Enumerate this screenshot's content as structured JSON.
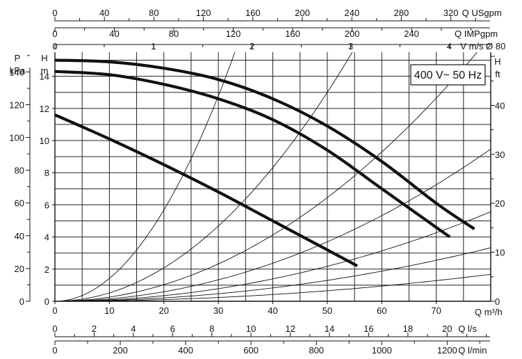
{
  "chart_data": {
    "type": "line",
    "badge": "400 V~ 50 Hz",
    "x_unit": "Q m³/h",
    "xlim": [
      0,
      80
    ],
    "ylim": [
      0,
      15.5
    ],
    "grid": true,
    "y_left_label": "H",
    "y_left_unit": "m",
    "y_left_ticks": [
      0,
      2,
      4,
      6,
      8,
      10,
      12,
      14
    ],
    "y_kpa_label": "P",
    "y_kpa_unit": "kPa",
    "y_kpa_ticks": [
      0,
      20,
      40,
      60,
      80,
      100,
      120,
      140
    ],
    "y_right_label": "H",
    "y_right_unit": "ft",
    "y_right_ticks": [
      0,
      10,
      20,
      30,
      40
    ],
    "x_bottom_ticks": [
      0,
      10,
      20,
      30,
      40,
      50,
      60,
      70
    ],
    "extra_axes": [
      {
        "id": "usgpm",
        "label": "Q USgpm",
        "ticks": [
          0,
          40,
          80,
          120,
          160,
          200,
          240,
          280,
          320
        ],
        "m3h_per_unit": 0.22712
      },
      {
        "id": "impgpm",
        "label": "Q IMPgpm",
        "ticks": [
          0,
          40,
          80,
          120,
          160,
          200,
          240
        ],
        "m3h_per_unit": 0.27277
      },
      {
        "id": "velocity",
        "label": "V m/s Ø 80",
        "ticks": [
          0,
          1,
          2,
          3,
          4
        ],
        "m3h_per_unit": 18.096
      },
      {
        "id": "ls",
        "label": "Q l/s",
        "ticks": [
          0,
          2,
          4,
          6,
          8,
          10,
          12,
          14,
          16,
          18,
          20
        ],
        "m3h_per_unit": 3.6
      },
      {
        "id": "lmin",
        "label": "Q l/min",
        "ticks": [
          0,
          200,
          400,
          600,
          800,
          1000,
          1200
        ],
        "m3h_per_unit": 0.06
      }
    ],
    "series": [
      {
        "x": [
          0,
          10,
          20,
          30,
          40,
          50,
          55.5
        ],
        "y": [
          11.6,
          10.1,
          8.5,
          6.8,
          5.0,
          3.2,
          2.2
        ]
      },
      {
        "x": [
          0,
          10,
          20,
          30,
          40,
          50,
          60,
          70,
          72.5
        ],
        "y": [
          14.3,
          14.1,
          13.5,
          12.6,
          11.3,
          9.4,
          7.0,
          4.6,
          4.0
        ]
      },
      {
        "x": [
          0,
          10,
          20,
          30,
          40,
          50,
          60,
          70,
          77
        ],
        "y": [
          15.0,
          14.9,
          14.5,
          13.8,
          12.6,
          10.9,
          8.7,
          6.1,
          4.5
        ]
      }
    ],
    "system_curves": [
      {
        "k": 0.0142
      },
      {
        "k": 0.0052
      },
      {
        "k": 0.00258
      },
      {
        "k": 0.00148
      },
      {
        "k": 0.00087
      },
      {
        "k": 0.00052
      },
      {
        "k": 0.000262
      }
    ]
  }
}
